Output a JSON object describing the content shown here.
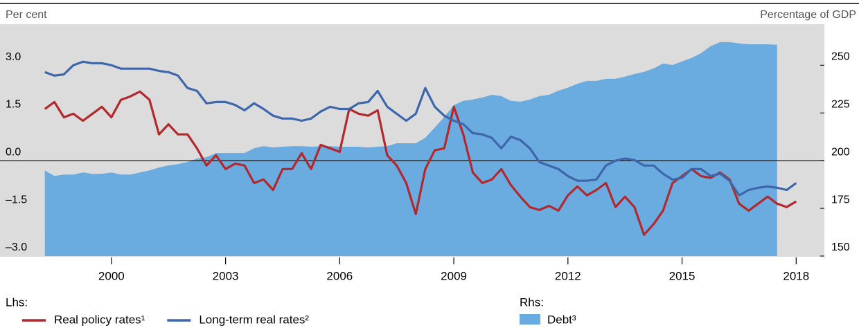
{
  "chart_data": {
    "type": "line",
    "y_label": "Per cent",
    "y2_label": "Percentage of GDP",
    "legend_groups": {
      "lhs": "Lhs:",
      "rhs": "Rhs:"
    },
    "x": [
      1998.25,
      1998.5,
      1998.75,
      1999,
      1999.25,
      1999.5,
      1999.75,
      2000,
      2000.25,
      2000.5,
      2000.75,
      2001,
      2001.25,
      2001.5,
      2001.75,
      2002,
      2002.25,
      2002.5,
      2002.75,
      2003,
      2003.25,
      2003.5,
      2003.75,
      2004,
      2004.25,
      2004.5,
      2004.75,
      2005,
      2005.25,
      2005.5,
      2005.75,
      2006,
      2006.25,
      2006.5,
      2006.75,
      2007,
      2007.25,
      2007.5,
      2007.75,
      2008,
      2008.25,
      2008.5,
      2008.75,
      2009,
      2009.25,
      2009.5,
      2009.75,
      2010,
      2010.25,
      2010.5,
      2010.75,
      2011,
      2011.25,
      2011.5,
      2011.75,
      2012,
      2012.25,
      2012.5,
      2012.75,
      2013,
      2013.25,
      2013.5,
      2013.75,
      2014,
      2014.25,
      2014.5,
      2014.75,
      2015,
      2015.25,
      2015.5,
      2015.75,
      2016,
      2016.25,
      2016.5,
      2016.75,
      2017,
      2017.25,
      2017.5,
      2017.75,
      2018
    ],
    "series": [
      {
        "name": "Debt³",
        "type": "area",
        "axis": "y2",
        "color": "#6aabe0",
        "values": [
          194.9,
          192.0,
          192.7,
          192.7,
          193.8,
          193.1,
          193.1,
          193.8,
          192.7,
          192.7,
          193.8,
          194.9,
          196.4,
          197.5,
          198.2,
          199.3,
          201.1,
          201.8,
          204.0,
          204.0,
          204.0,
          204.0,
          206.5,
          207.6,
          206.9,
          207.3,
          207.6,
          207.6,
          207.3,
          207.6,
          207.6,
          207.3,
          207.3,
          207.3,
          206.9,
          207.3,
          207.6,
          209.1,
          209.1,
          209.1,
          212.0,
          217.4,
          222.9,
          229.1,
          231.3,
          232.0,
          233.1,
          234.5,
          233.8,
          231.3,
          230.9,
          232.0,
          233.8,
          234.5,
          236.7,
          238.2,
          240.3,
          241.8,
          241.8,
          242.9,
          242.9,
          244.0,
          245.4,
          246.5,
          248.3,
          250.9,
          250.1,
          252.0,
          253.8,
          256.3,
          260.0,
          262.1,
          262.1,
          261.4,
          261.0,
          261.0,
          261.0,
          260.7,
          null,
          null
        ]
      },
      {
        "name": "Real policy rates¹",
        "type": "line",
        "axis": "y",
        "color": "#b3282d",
        "values": [
          1.63,
          1.85,
          1.37,
          1.48,
          1.26,
          1.48,
          1.7,
          1.37,
          1.92,
          2.03,
          2.18,
          1.92,
          0.83,
          1.15,
          0.83,
          0.83,
          0.39,
          -0.15,
          0.17,
          -0.26,
          -0.09,
          -0.15,
          -0.7,
          -0.59,
          -0.92,
          -0.26,
          -0.26,
          0.24,
          -0.26,
          0.5,
          0.39,
          0.28,
          1.63,
          1.48,
          1.42,
          1.59,
          0.17,
          -0.15,
          -0.7,
          -1.68,
          -0.26,
          0.33,
          0.39,
          1.7,
          0.83,
          -0.37,
          -0.7,
          -0.59,
          -0.26,
          -0.76,
          -1.13,
          -1.46,
          -1.55,
          -1.42,
          -1.57,
          -1.09,
          -0.81,
          -1.09,
          -0.92,
          -0.7,
          -1.46,
          -1.13,
          -1.46,
          -2.33,
          -2.0,
          -1.57,
          -0.7,
          -0.48,
          -0.26,
          -0.48,
          -0.54,
          -0.37,
          -0.59,
          -1.35,
          -1.57,
          -1.35,
          -1.13,
          -1.35,
          -1.46,
          -1.28
        ]
      },
      {
        "name": "Long-term real rates²",
        "type": "line",
        "axis": "y",
        "color": "#3d66ab",
        "values": [
          2.79,
          2.68,
          2.72,
          3.01,
          3.12,
          3.07,
          3.07,
          3.01,
          2.9,
          2.9,
          2.9,
          2.9,
          2.83,
          2.79,
          2.68,
          2.29,
          2.2,
          1.81,
          1.85,
          1.85,
          1.76,
          1.59,
          1.81,
          1.63,
          1.42,
          1.33,
          1.33,
          1.26,
          1.33,
          1.55,
          1.7,
          1.63,
          1.63,
          1.81,
          1.85,
          2.2,
          1.7,
          1.48,
          1.26,
          1.48,
          2.29,
          1.7,
          1.42,
          1.26,
          1.15,
          0.87,
          0.83,
          0.72,
          0.39,
          0.76,
          0.65,
          0.39,
          -0.04,
          -0.15,
          -0.26,
          -0.48,
          -0.63,
          -0.63,
          -0.59,
          -0.15,
          0.0,
          0.07,
          0.02,
          -0.15,
          -0.15,
          -0.41,
          -0.59,
          -0.54,
          -0.26,
          -0.26,
          -0.48,
          -0.41,
          -0.63,
          -1.09,
          -0.92,
          -0.85,
          -0.81,
          -0.85,
          -0.92,
          -0.7
        ]
      }
    ],
    "xlim": [
      1998.2,
      2018.65
    ],
    "xticks": [
      2000,
      2003,
      2006,
      2009,
      2012,
      2015,
      2018
    ],
    "ylim": [
      -3.0,
      4.3
    ],
    "yticks": [
      {
        "value": -3.0,
        "label": "–3.0"
      },
      {
        "value": -1.5,
        "label": "–1.5"
      },
      {
        "value": 0.0,
        "label": "0.0"
      },
      {
        "value": 1.5,
        "label": "1.5"
      },
      {
        "value": 3.0,
        "label": "3.0"
      }
    ],
    "y2lim": [
      150,
      271.5
    ],
    "y2ticks": [
      150,
      175,
      200,
      225,
      250
    ],
    "zero_line": true,
    "background": "#dcdcdc"
  }
}
